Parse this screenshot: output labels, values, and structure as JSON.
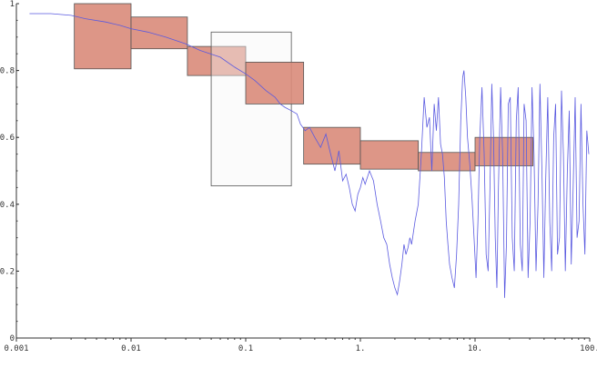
{
  "chart_data": {
    "type": "line",
    "title": "",
    "xlabel": "",
    "ylabel": "",
    "x_scale": "log",
    "xlim": [
      0.001,
      100
    ],
    "ylim": [
      0,
      1
    ],
    "x_ticks": [
      {
        "value": 0.001,
        "label": "0.001"
      },
      {
        "value": 0.01,
        "label": "0.01"
      },
      {
        "value": 0.1,
        "label": "0.1"
      },
      {
        "value": 1,
        "label": "1."
      },
      {
        "value": 10,
        "label": "10."
      },
      {
        "value": 100,
        "label": "100."
      }
    ],
    "y_ticks": [
      {
        "value": 0,
        "label": "0"
      },
      {
        "value": 0.2,
        "label": "0.2"
      },
      {
        "value": 0.4,
        "label": "0.4"
      },
      {
        "value": 0.6,
        "label": "0.6"
      },
      {
        "value": 0.8,
        "label": "0.8"
      },
      {
        "value": 1,
        "label": "1"
      }
    ],
    "series": [
      {
        "color": "#5a5ae0",
        "x": [
          0.0013,
          0.002,
          0.003,
          0.004,
          0.006,
          0.008,
          0.01,
          0.014,
          0.02,
          0.03,
          0.04,
          0.06,
          0.08,
          0.1,
          0.12,
          0.15,
          0.18,
          0.2,
          0.22,
          0.25,
          0.28,
          0.3,
          0.33,
          0.36,
          0.4,
          0.45,
          0.5,
          0.55,
          0.6,
          0.65,
          0.7,
          0.75,
          0.8,
          0.85,
          0.9,
          0.95,
          1.0,
          1.05,
          1.1,
          1.2,
          1.3,
          1.4,
          1.5,
          1.6,
          1.7,
          1.8,
          1.9,
          2.0,
          2.1,
          2.2,
          2.3,
          2.4,
          2.5,
          2.6,
          2.7,
          2.8,
          3.0,
          3.2,
          3.4,
          3.6,
          3.8,
          4.0,
          4.2,
          4.4,
          4.6,
          4.8,
          5.0,
          5.2,
          5.4,
          5.6,
          5.8,
          6.0,
          6.3,
          6.6,
          6.9,
          7.2,
          7.5,
          7.8,
          8.0,
          8.3,
          8.6,
          9.0,
          9.4,
          9.8,
          10.2,
          10.6,
          11.0,
          11.5,
          12.0,
          12.5,
          13.0,
          13.5,
          14.0,
          14.5,
          15.0,
          15.5,
          16.0,
          16.7,
          17.4,
          18.1,
          18.8,
          19.5,
          20.3,
          21.1,
          22.0,
          22.9,
          23.8,
          24.8,
          25.8,
          26.8,
          27.9,
          29.0,
          30.2,
          31.4,
          32.7,
          34.0,
          35.4,
          36.8,
          38.3,
          39.8,
          41.4,
          43.1,
          44.8,
          46.6,
          48.5,
          50.4,
          52.4,
          54.5,
          56.7,
          59.0,
          61.3,
          63.8,
          66.3,
          69.0,
          71.7,
          74.6,
          77.6,
          80.7,
          83.9,
          87.3,
          90.8,
          94.4,
          98.2
        ],
        "y": [
          0.97,
          0.97,
          0.965,
          0.955,
          0.945,
          0.935,
          0.925,
          0.915,
          0.9,
          0.88,
          0.86,
          0.84,
          0.81,
          0.79,
          0.77,
          0.74,
          0.72,
          0.7,
          0.69,
          0.68,
          0.67,
          0.64,
          0.62,
          0.63,
          0.6,
          0.57,
          0.61,
          0.55,
          0.5,
          0.56,
          0.47,
          0.49,
          0.45,
          0.4,
          0.38,
          0.43,
          0.45,
          0.48,
          0.46,
          0.5,
          0.47,
          0.4,
          0.35,
          0.3,
          0.28,
          0.22,
          0.18,
          0.15,
          0.13,
          0.17,
          0.22,
          0.28,
          0.25,
          0.27,
          0.3,
          0.28,
          0.35,
          0.4,
          0.55,
          0.72,
          0.63,
          0.66,
          0.5,
          0.7,
          0.62,
          0.72,
          0.58,
          0.55,
          0.48,
          0.35,
          0.28,
          0.22,
          0.18,
          0.15,
          0.25,
          0.4,
          0.65,
          0.78,
          0.8,
          0.72,
          0.6,
          0.52,
          0.42,
          0.3,
          0.18,
          0.35,
          0.6,
          0.75,
          0.55,
          0.25,
          0.2,
          0.45,
          0.76,
          0.6,
          0.3,
          0.15,
          0.45,
          0.75,
          0.55,
          0.12,
          0.28,
          0.7,
          0.72,
          0.3,
          0.2,
          0.65,
          0.75,
          0.28,
          0.2,
          0.7,
          0.65,
          0.18,
          0.35,
          0.75,
          0.55,
          0.2,
          0.4,
          0.76,
          0.5,
          0.18,
          0.48,
          0.72,
          0.35,
          0.2,
          0.6,
          0.7,
          0.25,
          0.3,
          0.74,
          0.55,
          0.2,
          0.5,
          0.68,
          0.22,
          0.45,
          0.72,
          0.3,
          0.35,
          0.7,
          0.4,
          0.25,
          0.62,
          0.55
        ]
      }
    ],
    "boxes": [
      {
        "x0": 0.0032,
        "x1": 0.01,
        "y0": 0.805,
        "y1": 1.0,
        "fill": "#d98b7a",
        "fill_opacity": 0.9
      },
      {
        "x0": 0.01,
        "x1": 0.031,
        "y0": 0.865,
        "y1": 0.96,
        "fill": "#d98b7a",
        "fill_opacity": 0.9
      },
      {
        "x0": 0.031,
        "x1": 0.1,
        "y0": 0.785,
        "y1": 0.872,
        "fill": "#d98b7a",
        "fill_opacity": 0.9
      },
      {
        "x0": 0.05,
        "x1": 0.25,
        "y0": 0.455,
        "y1": 0.915,
        "fill": "#f5f5f5",
        "fill_opacity": 0.4
      },
      {
        "x0": 0.1,
        "x1": 0.32,
        "y0": 0.7,
        "y1": 0.825,
        "fill": "#d98b7a",
        "fill_opacity": 0.9
      },
      {
        "x0": 0.32,
        "x1": 1.0,
        "y0": 0.52,
        "y1": 0.63,
        "fill": "#d98b7a",
        "fill_opacity": 0.9
      },
      {
        "x0": 1.0,
        "x1": 3.2,
        "y0": 0.505,
        "y1": 0.59,
        "fill": "#d98b7a",
        "fill_opacity": 0.9
      },
      {
        "x0": 3.2,
        "x1": 10.0,
        "y0": 0.5,
        "y1": 0.555,
        "fill": "#d98b7a",
        "fill_opacity": 0.9
      },
      {
        "x0": 10.0,
        "x1": 32.0,
        "y0": 0.515,
        "y1": 0.6,
        "fill": "#d98b7a",
        "fill_opacity": 0.9
      }
    ]
  }
}
